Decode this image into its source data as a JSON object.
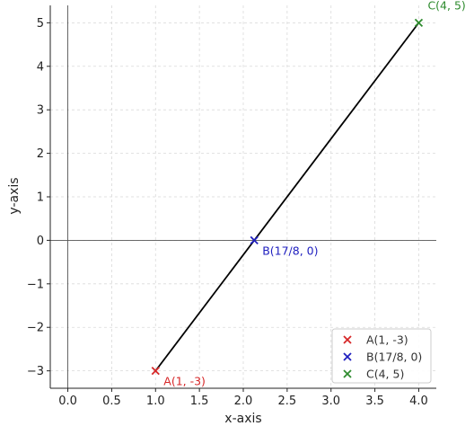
{
  "chart_data": {
    "type": "line",
    "title": "",
    "xlabel": "x-axis",
    "ylabel": "y-axis",
    "xlim": [
      -0.2,
      4.2
    ],
    "ylim": [
      -3.4,
      5.4
    ],
    "xticks": [
      0.0,
      0.5,
      1.0,
      1.5,
      2.0,
      2.5,
      3.0,
      3.5,
      4.0
    ],
    "xtick_labels": [
      "0.0",
      "0.5",
      "1.0",
      "1.5",
      "2.0",
      "2.5",
      "3.0",
      "3.5",
      "4.0"
    ],
    "yticks": [
      -3,
      -2,
      -1,
      0,
      1,
      2,
      3,
      4,
      5
    ],
    "ytick_labels": [
      "−3",
      "−2",
      "−1",
      "0",
      "1",
      "2",
      "3",
      "4",
      "5"
    ],
    "grid": true,
    "legend_position": "lower-right",
    "line": {
      "points": [
        [
          1,
          -3
        ],
        [
          4,
          5
        ]
      ],
      "color": "#000000"
    },
    "reference_lines": {
      "x": 0,
      "y": 0
    },
    "points": [
      {
        "label": "A(1, -3)",
        "x": 1,
        "y": -3,
        "color": "#d62728",
        "marker": "x"
      },
      {
        "label": "B(17/8, 0)",
        "x": 2.125,
        "y": 0,
        "color": "#1f1fbf",
        "marker": "x"
      },
      {
        "label": "C(4, 5)",
        "x": 4,
        "y": 5,
        "color": "#2e8b2e",
        "marker": "x"
      }
    ],
    "legend": [
      "A(1, -3)",
      "B(17/8, 0)",
      "C(4, 5)"
    ]
  }
}
